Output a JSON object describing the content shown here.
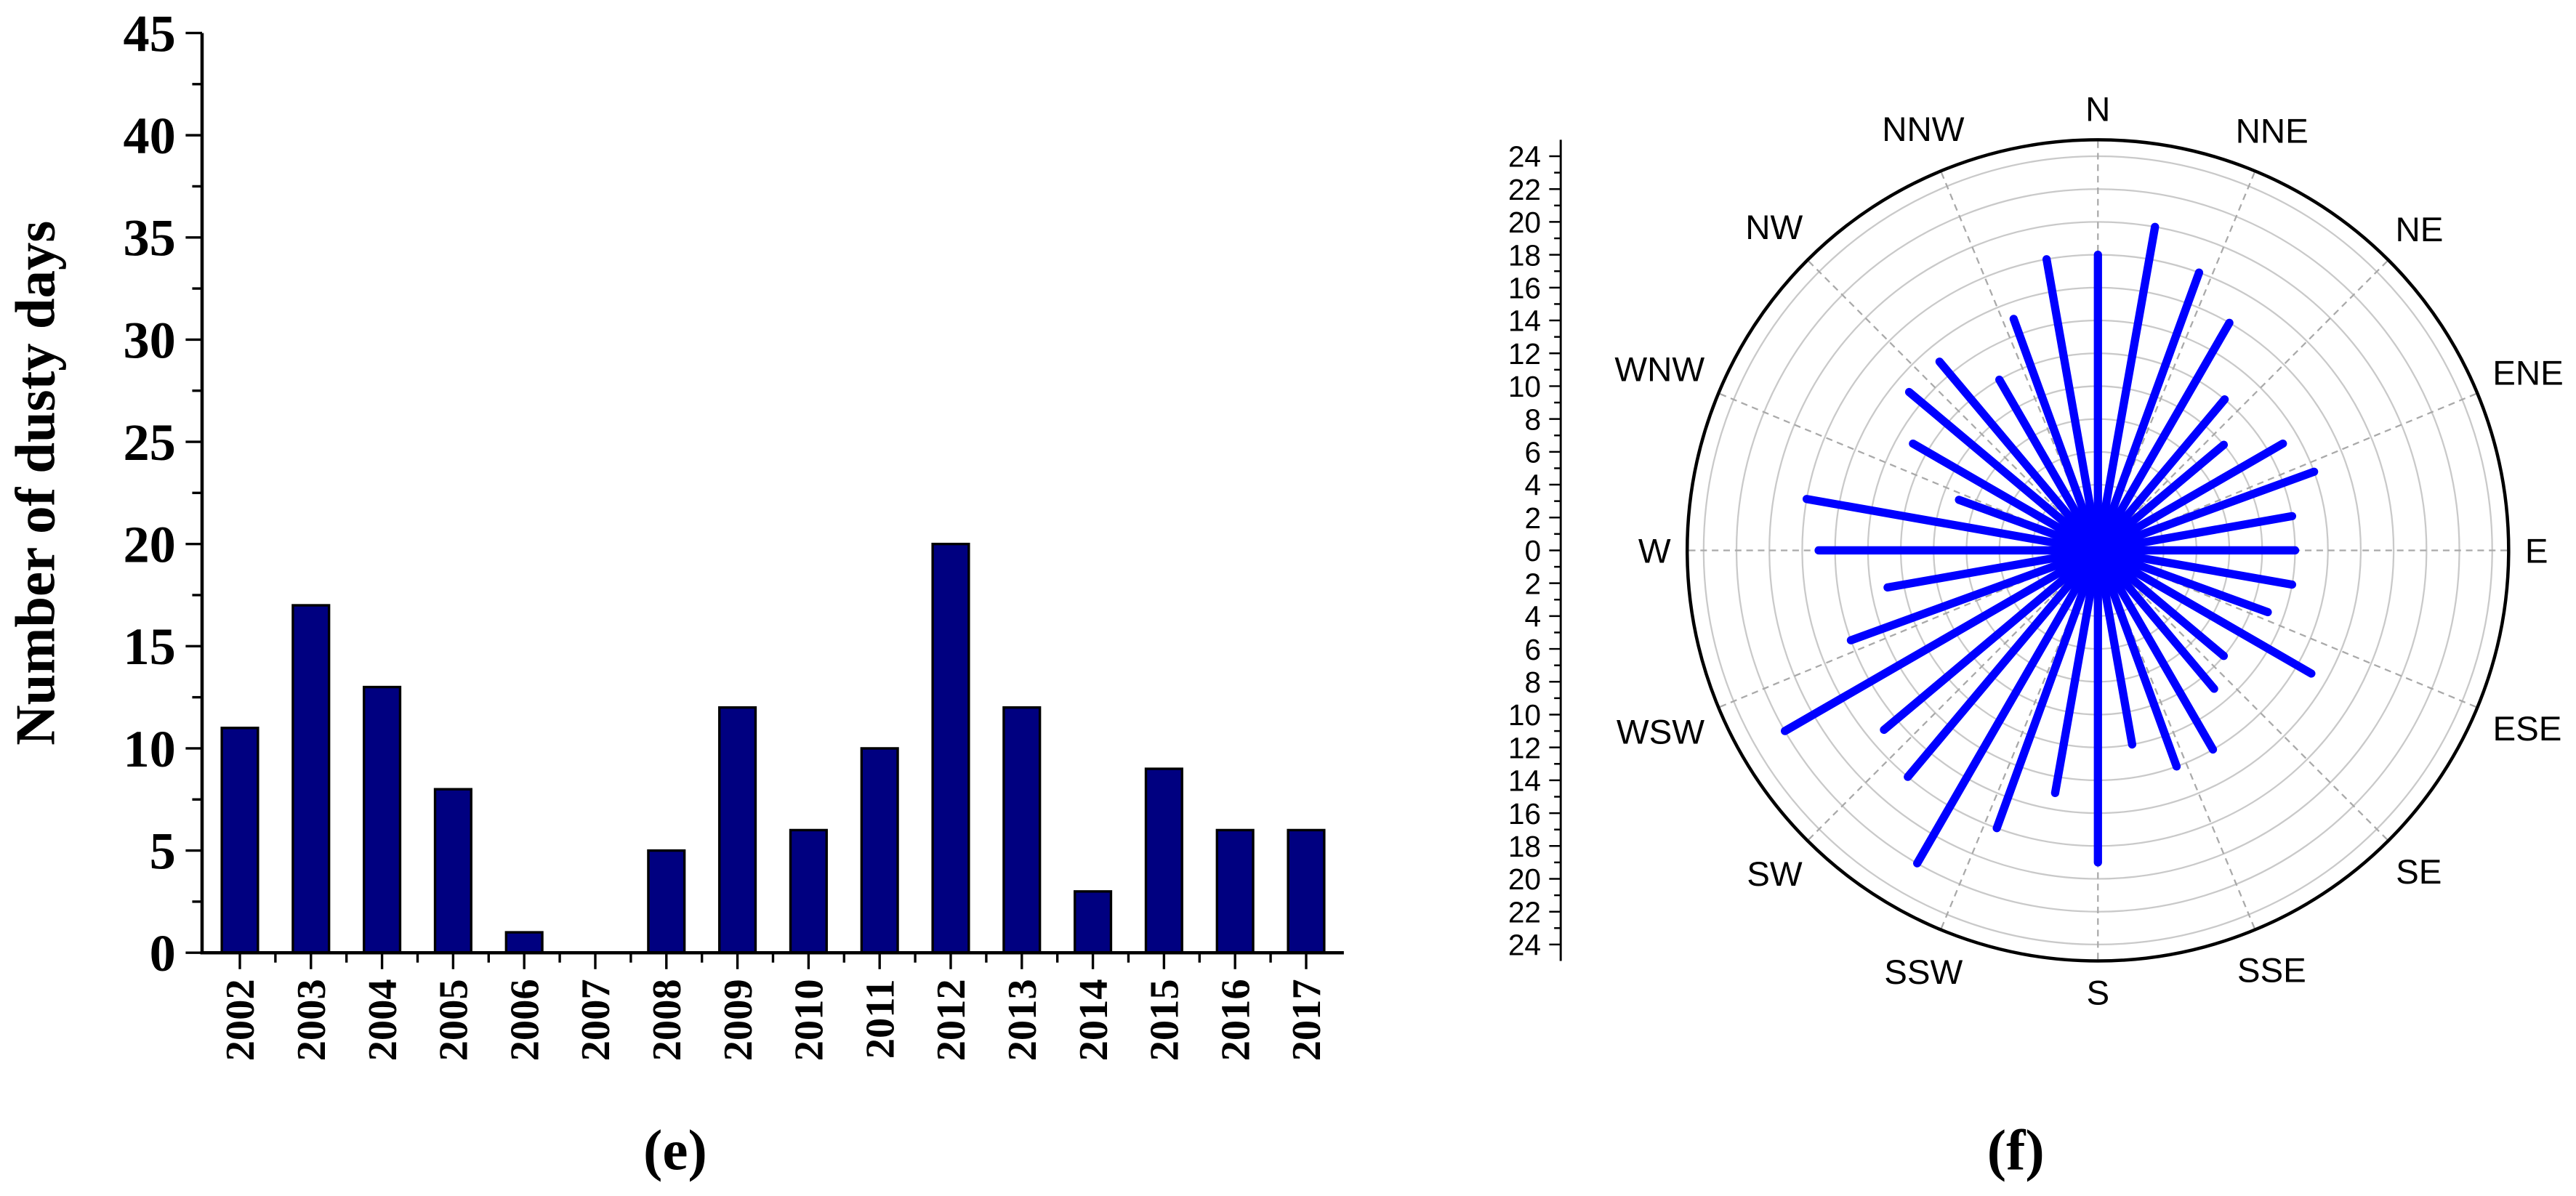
{
  "chart_data": [
    {
      "type": "bar",
      "panel_label": "(e)",
      "ylabel": "Number of dusty days",
      "categories": [
        "2002",
        "2003",
        "2004",
        "2005",
        "2006",
        "2007",
        "2008",
        "2009",
        "2010",
        "2011",
        "2012",
        "2013",
        "2014",
        "2015",
        "2016",
        "2017"
      ],
      "values": [
        11,
        17,
        13,
        8,
        1,
        0,
        5,
        12,
        6,
        10,
        20,
        12,
        3,
        9,
        6,
        6
      ],
      "ylim": [
        0,
        45
      ],
      "yticks": [
        0,
        5,
        10,
        15,
        20,
        25,
        30,
        35,
        40,
        45
      ],
      "grid": false,
      "bar_color": "#000080"
    },
    {
      "type": "bar",
      "projection": "polar",
      "panel_label": "(f)",
      "direction_labels": [
        "N",
        "NNE",
        "NE",
        "ENE",
        "E",
        "ESE",
        "SE",
        "SSE",
        "S",
        "SSW",
        "SW",
        "WSW",
        "W",
        "WNW",
        "NW",
        "NNW"
      ],
      "directions_deg": [
        0,
        10,
        20,
        30,
        40,
        50,
        60,
        70,
        80,
        90,
        100,
        110,
        120,
        130,
        140,
        150,
        160,
        170,
        180,
        190,
        200,
        210,
        220,
        230,
        240,
        250,
        260,
        270,
        280,
        290,
        300,
        310,
        320,
        330,
        340,
        350
      ],
      "values": [
        18,
        20,
        18,
        16,
        12,
        10,
        13,
        14,
        12,
        12,
        12,
        11,
        15,
        10,
        11,
        14,
        14,
        12,
        19,
        15,
        18,
        22,
        18,
        17,
        22,
        16,
        13,
        17,
        18,
        9,
        13,
        15,
        15,
        12,
        15,
        18
      ],
      "rlim": [
        0,
        25
      ],
      "rticks": [
        0,
        2,
        4,
        6,
        8,
        10,
        12,
        14,
        16,
        18,
        20,
        22,
        24
      ],
      "grid": true,
      "line_color": "#0000ff"
    }
  ]
}
